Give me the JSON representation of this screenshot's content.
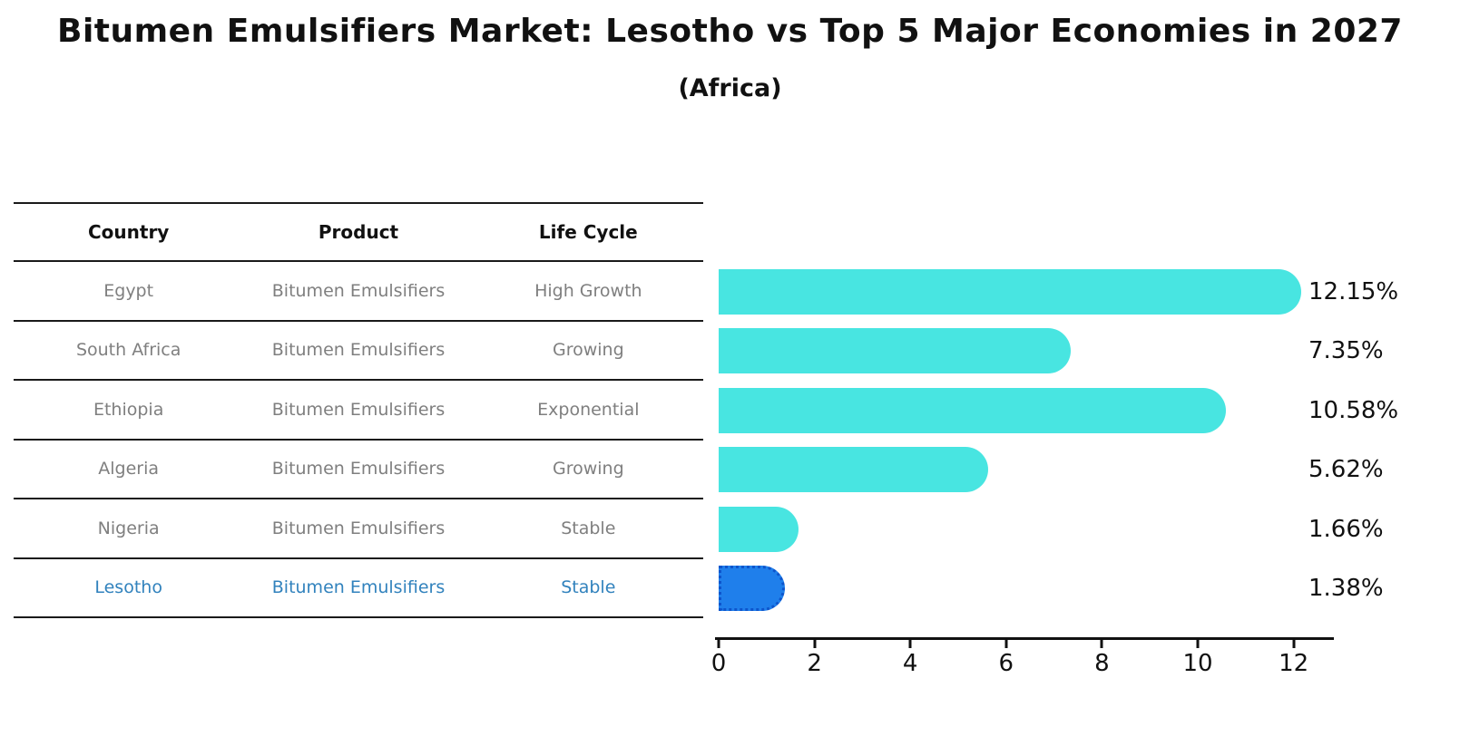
{
  "title": "Bitumen Emulsifiers Market: Lesotho vs Top 5 Major Economies in 2027",
  "subtitle": "(Africa)",
  "table": {
    "columns": [
      "Country",
      "Product",
      "Life Cycle"
    ],
    "rows": [
      {
        "country": "Egypt",
        "product": "Bitumen Emulsifiers",
        "life_cycle": "High Growth"
      },
      {
        "country": "South Africa",
        "product": "Bitumen Emulsifiers",
        "life_cycle": "Growing"
      },
      {
        "country": "Ethiopia",
        "product": "Bitumen Emulsifiers",
        "life_cycle": "Exponential"
      },
      {
        "country": "Algeria",
        "product": "Bitumen Emulsifiers",
        "life_cycle": "Growing"
      },
      {
        "country": "Nigeria",
        "product": "Bitumen Emulsifiers",
        "life_cycle": "Stable"
      },
      {
        "country": "Lesotho",
        "product": "Bitumen Emulsifiers",
        "life_cycle": "Stable"
      }
    ],
    "highlighted_row": "Lesotho",
    "highlight_text_color": "#3182BD"
  },
  "chart_data": {
    "type": "bar",
    "orientation": "horizontal",
    "title": "Bitumen Emulsifiers Market: Lesotho vs Top 5 Major Economies in 2027",
    "subtitle": "(Africa)",
    "categories": [
      "Egypt",
      "South Africa",
      "Ethiopia",
      "Algeria",
      "Nigeria",
      "Lesotho"
    ],
    "values": [
      12.15,
      7.35,
      10.58,
      5.62,
      1.66,
      1.38
    ],
    "value_labels": [
      "12.15%",
      "7.35%",
      "10.58%",
      "5.62%",
      "1.66%",
      "1.38%"
    ],
    "unit": "%",
    "xlabel": "",
    "ylabel": "",
    "xlim": [
      0,
      12.84
    ],
    "xticks": [
      0,
      2,
      4,
      6,
      8,
      10,
      12
    ],
    "grid": false,
    "legend": false,
    "highlight_index": 5,
    "bar_color": "#48E5E1",
    "highlight_color": "#1F7FEB",
    "highlight_border_color": "#0D55CC"
  }
}
